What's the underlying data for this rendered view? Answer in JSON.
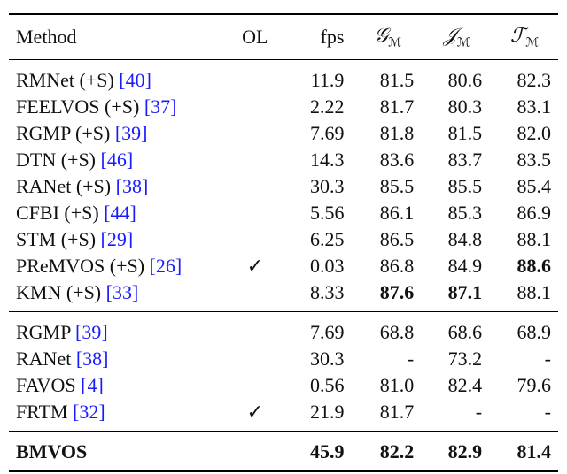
{
  "table": {
    "header": {
      "method": "Method",
      "ol": "OL",
      "fps": "fps",
      "metrics": [
        {
          "symbol": "𝒢",
          "sub": "ℳ"
        },
        {
          "symbol": "𝒥",
          "sub": "ℳ"
        },
        {
          "symbol": "ℱ",
          "sub": "ℳ"
        }
      ]
    },
    "groups": [
      [
        {
          "method": "RMNet (+S)",
          "cite": "[40]",
          "fps": "11.9",
          "values": [
            "81.5",
            "80.6",
            "82.3"
          ]
        },
        {
          "method": "FEELVOS (+S)",
          "cite": "[37]",
          "fps": "2.22",
          "values": [
            "81.7",
            "80.3",
            "83.1"
          ]
        },
        {
          "method": "RGMP (+S)",
          "cite": "[39]",
          "fps": "7.69",
          "values": [
            "81.8",
            "81.5",
            "82.0"
          ]
        },
        {
          "method": "DTN (+S)",
          "cite": "[46]",
          "fps": "14.3",
          "values": [
            "83.6",
            "83.7",
            "83.5"
          ]
        },
        {
          "method": "RANet (+S)",
          "cite": "[38]",
          "fps": "30.3",
          "values": [
            "85.5",
            "85.5",
            "85.4"
          ]
        },
        {
          "method": "CFBI (+S)",
          "cite": "[44]",
          "fps": "5.56",
          "values": [
            "86.1",
            "85.3",
            "86.9"
          ]
        },
        {
          "method": "STM (+S)",
          "cite": "[29]",
          "fps": "6.25",
          "values": [
            "86.5",
            "84.8",
            "88.1"
          ]
        },
        {
          "method": "PReMVOS (+S)",
          "cite": "[26]",
          "ol": "✓",
          "fps": "0.03",
          "values": [
            "86.8",
            "84.9",
            "88.6"
          ],
          "bold": [
            2
          ]
        },
        {
          "method": "KMN (+S)",
          "cite": "[33]",
          "fps": "8.33",
          "values": [
            "87.6",
            "87.1",
            "88.1"
          ],
          "bold": [
            0,
            1
          ]
        }
      ],
      [
        {
          "method": "RGMP",
          "cite": "[39]",
          "fps": "7.69",
          "values": [
            "68.8",
            "68.6",
            "68.9"
          ]
        },
        {
          "method": "RANet",
          "cite": "[38]",
          "fps": "30.3",
          "values": [
            "-",
            "73.2",
            "-"
          ]
        },
        {
          "method": "FAVOS",
          "cite": "[4]",
          "fps": "0.56",
          "values": [
            "81.0",
            "82.4",
            "79.6"
          ]
        },
        {
          "method": "FRTM",
          "cite": "[32]",
          "ol": "✓",
          "fps": "21.9",
          "values": [
            "81.7",
            "-",
            "-"
          ]
        }
      ],
      [
        {
          "method": "BMVOS",
          "fps": "45.9",
          "values": [
            "82.2",
            "82.9",
            "81.4"
          ],
          "bold_row": true
        }
      ]
    ]
  }
}
